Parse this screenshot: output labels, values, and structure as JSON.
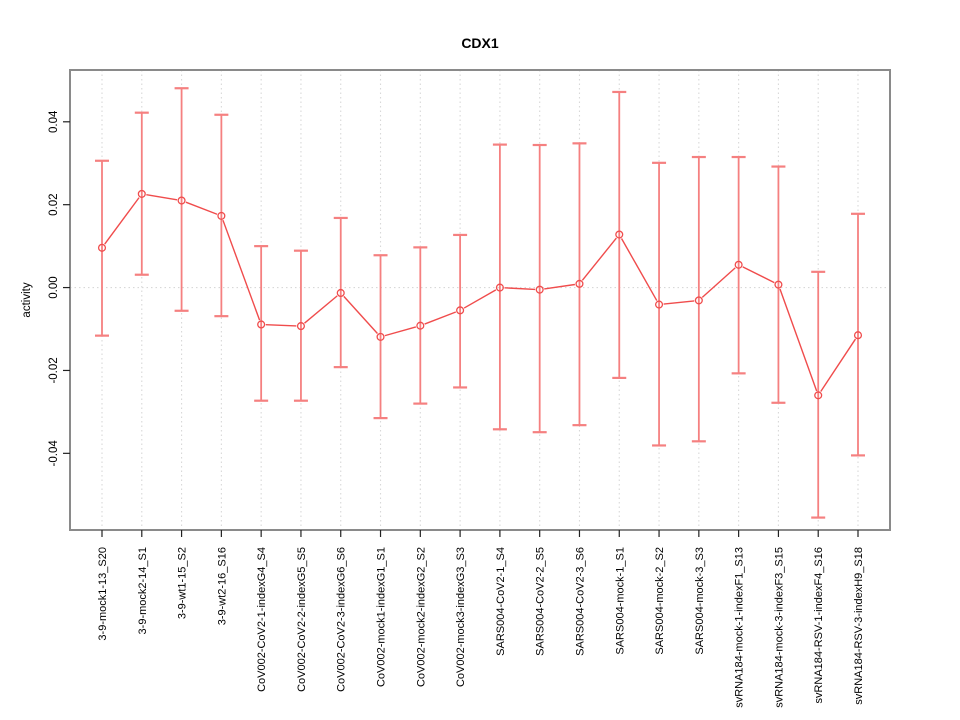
{
  "chart_data": {
    "type": "scatter",
    "title": "CDX1",
    "ylabel": "activity",
    "xlabel": "",
    "legend": "none",
    "categories": [
      "3-9-mock1-13_S20",
      "3-9-mock2-14_S1",
      "3-9-wt1-15_S2",
      "3-9-wt2-16_S16",
      "CoV002-CoV2-1-indexG4_S4",
      "CoV002-CoV2-2-indexG5_S5",
      "CoV002-CoV2-3-indexG6_S6",
      "CoV002-mock1-indexG1_S1",
      "CoV002-mock2-indexG2_S2",
      "CoV002-mock3-indexG3_S3",
      "SARS004-CoV2-1_S4",
      "SARS004-CoV2-2_S5",
      "SARS004-CoV2-3_S6",
      "SARS004-mock-1_S1",
      "SARS004-mock-2_S2",
      "SARS004-mock-3_S3",
      "svRNA184-mock-1-indexF1_S13",
      "svRNA184-mock-3-indexF3_S15",
      "svRNA184-RSV-1-indexF4_S16",
      "svRNA184-RSV-3-indexH9_S18"
    ],
    "values": [
      0.0096,
      0.0226,
      0.021,
      0.0173,
      -0.0089,
      -0.0093,
      -0.0013,
      -0.0119,
      -0.0092,
      -0.0055,
      0.0,
      -0.0005,
      0.0009,
      0.0128,
      -0.0041,
      -0.0031,
      0.0055,
      0.0007,
      -0.026,
      -0.0115
    ],
    "error_upper": [
      0.0306,
      0.0422,
      0.0481,
      0.0417,
      0.01,
      0.0089,
      0.0168,
      0.0078,
      0.0097,
      0.0127,
      0.0345,
      0.0344,
      0.0348,
      0.0472,
      0.0301,
      0.0315,
      0.0315,
      0.0292,
      0.0038,
      0.0178
    ],
    "error_lower": [
      -0.0116,
      0.0031,
      -0.0056,
      -0.0069,
      -0.0273,
      -0.0273,
      -0.0192,
      -0.0315,
      -0.028,
      -0.0241,
      -0.0342,
      -0.0349,
      -0.0332,
      -0.0218,
      -0.0381,
      -0.0371,
      -0.0207,
      -0.0278,
      -0.0555,
      -0.0405
    ],
    "yticks": {
      "values": [
        0.04,
        0.02,
        0.0,
        -0.02,
        -0.04
      ],
      "labels": [
        "0.04",
        "0.02",
        "0.00",
        "-0.02",
        "-0.04"
      ]
    },
    "ylim": [
      -0.0585,
      0.0525
    ],
    "grid": {
      "vertical_per_category": true,
      "horizontal_zero_line": true,
      "style": "dotted"
    },
    "colors": {
      "point": "#f04c4c",
      "errorbar": "#f58080",
      "grid": "#d8d8d8",
      "frame": "#8a8a8a",
      "tick": "#222222",
      "text": "#000000"
    }
  }
}
